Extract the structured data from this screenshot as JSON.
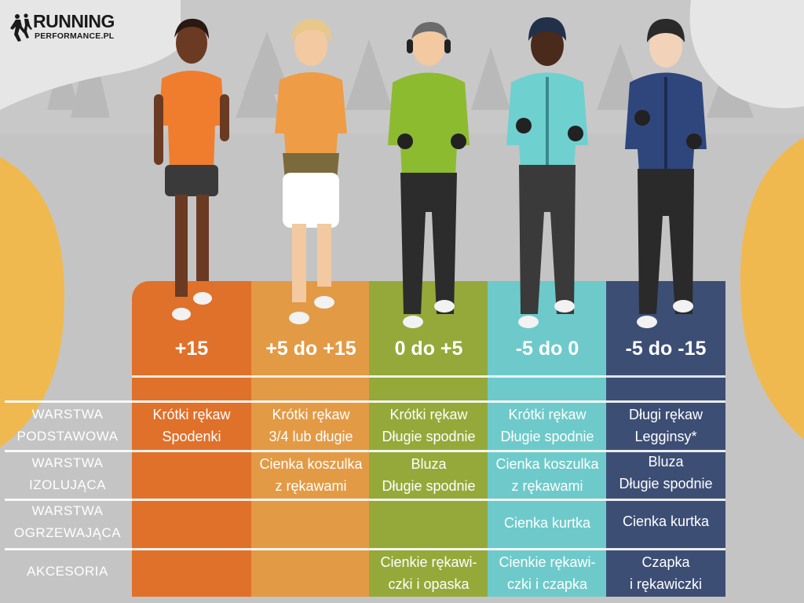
{
  "logo": {
    "line1": "RUNNING",
    "line2": "PERFORMANCE.PL"
  },
  "colors": {
    "hot": "#e0712a",
    "warm": "#e39a45",
    "mild": "#94a93a",
    "cool": "#6ecaca",
    "cold": "#3d4e75"
  },
  "columns": [
    {
      "temp": "+15",
      "base": [
        "Krótki rękaw",
        "Spodenki"
      ],
      "insulating": [],
      "warming": [],
      "accessories": []
    },
    {
      "temp": "+5 do +15",
      "base": [
        "Krótki rękaw",
        "3/4 lub długie"
      ],
      "insulating": [
        "Cienka koszulka",
        "z rękawami"
      ],
      "warming": [],
      "accessories": []
    },
    {
      "temp": "0 do +5",
      "base": [
        "Krótki rękaw",
        "Długie spodnie"
      ],
      "insulating": [
        "Bluza",
        "Długie spodnie"
      ],
      "warming": [],
      "accessories": [
        "Cienkie rękawi-",
        "czki i opaska"
      ]
    },
    {
      "temp": "-5 do 0",
      "base": [
        "Krótki rękaw",
        "Długie spodnie"
      ],
      "insulating": [
        "Cienka koszulka",
        "z rękawami"
      ],
      "warming": [
        "Cienka kurtka"
      ],
      "accessories": [
        "Cienkie rękawi-",
        "czki i czapka"
      ]
    },
    {
      "temp": "-5 do -15",
      "base": [
        "Długi rękaw",
        "Legginsy*"
      ],
      "insulating": [
        "Bluza",
        "Długie spodnie"
      ],
      "warming": [
        "Cienka kurtka"
      ],
      "accessories": [
        "Czapka",
        "i rękawiczki"
      ]
    }
  ],
  "rows": {
    "base": [
      "WARSTWA",
      "PODSTAWOWA"
    ],
    "insulating": [
      "WARSTWA",
      "IZOLUJĄCA"
    ],
    "warming": [
      "WARSTWA",
      "OGRZEWAJĄCA"
    ],
    "accessories": [
      "AKCESORIA"
    ]
  }
}
